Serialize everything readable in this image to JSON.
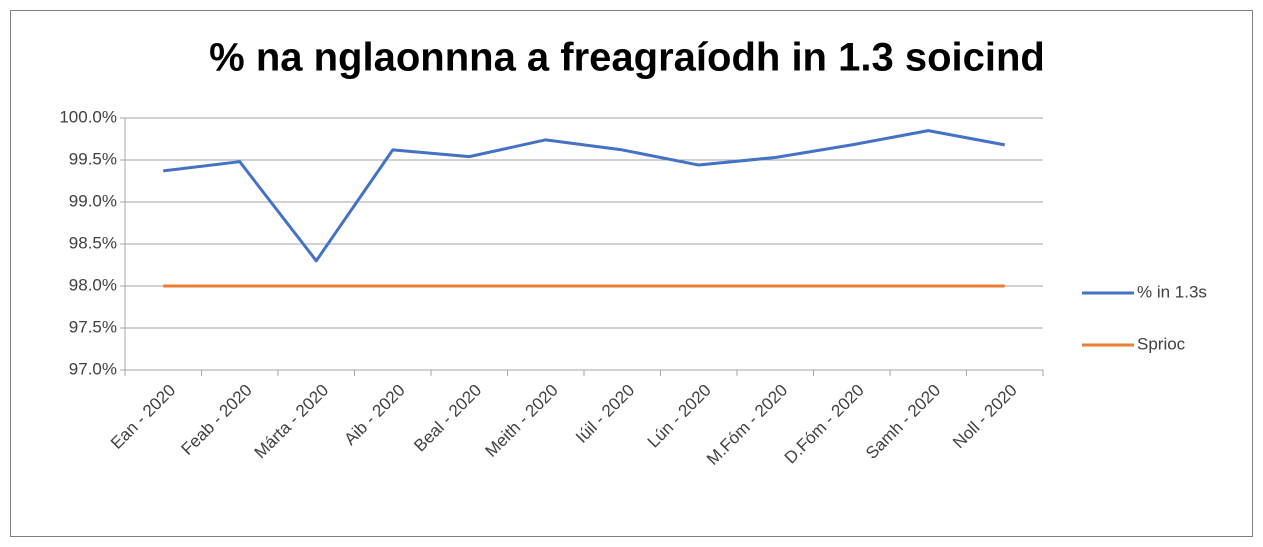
{
  "chart_data": {
    "type": "line",
    "title": "% na nglaonnna a freagraíodh in 1.3 soicind",
    "categories": [
      "Ean - 2020",
      "Feab - 2020",
      "Márta - 2020",
      "Aib - 2020",
      "Beal - 2020",
      "Meith - 2020",
      "Iúil - 2020",
      "Lún - 2020",
      "M.Fóm - 2020",
      "D.Fóm - 2020",
      "Samh - 2020",
      "Noll - 2020"
    ],
    "series": [
      {
        "name": "% in 1.3s",
        "color": "#4472c4",
        "values": [
          99.37,
          99.48,
          98.3,
          99.62,
          99.54,
          99.74,
          99.62,
          99.44,
          99.53,
          99.68,
          99.85,
          99.68
        ]
      },
      {
        "name": "Sprioc",
        "color": "#ed7d31",
        "values": [
          98,
          98,
          98,
          98,
          98,
          98,
          98,
          98,
          98,
          98,
          98,
          98
        ]
      }
    ],
    "ylim": [
      97,
      100
    ],
    "yticks": [
      {
        "value": 97,
        "label": "97.0%"
      },
      {
        "value": 97.5,
        "label": "97.5%"
      },
      {
        "value": 98,
        "label": "98.0%"
      },
      {
        "value": 98.5,
        "label": "98.5%"
      },
      {
        "value": 99,
        "label": "99.0%"
      },
      {
        "value": 99.5,
        "label": "99.5%"
      },
      {
        "value": 100,
        "label": "100.0%"
      }
    ],
    "grid": true,
    "legend": "right"
  }
}
